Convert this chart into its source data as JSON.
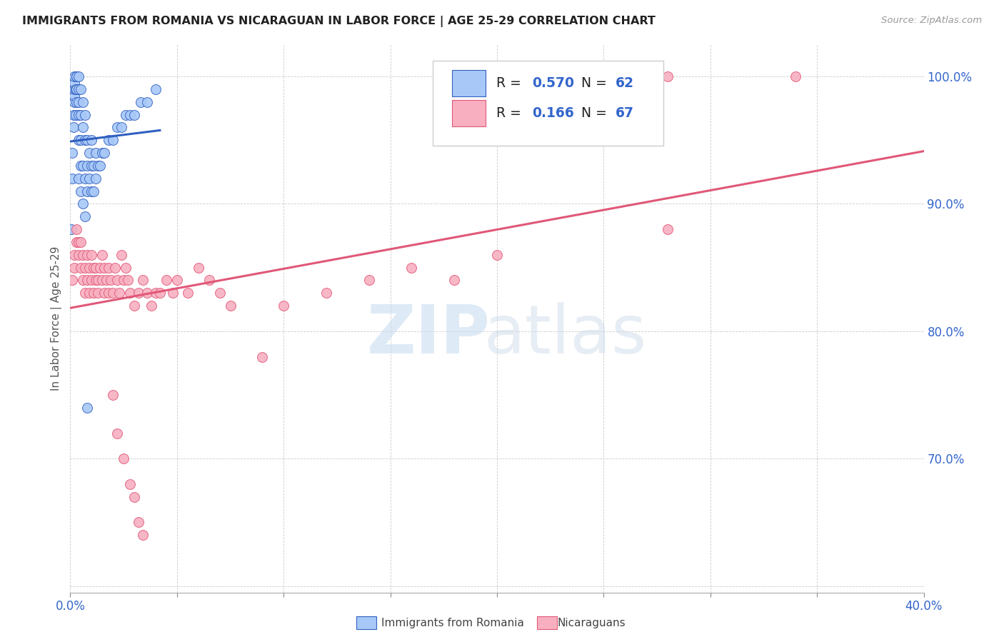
{
  "title": "IMMIGRANTS FROM ROMANIA VS NICARAGUAN IN LABOR FORCE | AGE 25-29 CORRELATION CHART",
  "source": "Source: ZipAtlas.com",
  "ylabel_label": "In Labor Force | Age 25-29",
  "legend_romania_r": "0.570",
  "legend_romania_n": "62",
  "legend_nicaraguan_r": "0.166",
  "legend_nicaraguan_n": "67",
  "legend_label1": "Immigrants from Romania",
  "legend_label2": "Nicaraguans",
  "romania_color": "#a8c8f8",
  "romania_edge_color": "#3060c0",
  "nicaraguan_color": "#f8b0c0",
  "nicaraguan_edge_color": "#e05878",
  "trendline_romania_color": "#3060c0",
  "trendline_nicaraguan_color": "#e05878",
  "xmin": 0.0,
  "xmax": 0.4,
  "ymin": 0.595,
  "ymax": 1.025,
  "ytick_positions": [
    0.6,
    0.7,
    0.8,
    0.9,
    1.0
  ],
  "ytick_labels": [
    "",
    "70.0%",
    "80.0%",
    "90.0%",
    "100.0%"
  ],
  "xtick_positions": [
    0.0,
    0.05,
    0.1,
    0.15,
    0.2,
    0.25,
    0.3,
    0.35,
    0.4
  ],
  "xtick_labels": [
    "0.0%",
    "",
    "",
    "",
    "",
    "",
    "",
    "",
    "40.0%"
  ],
  "romania_x": [
    0.0005,
    0.001,
    0.001,
    0.0015,
    0.0015,
    0.002,
    0.002,
    0.002,
    0.002,
    0.002,
    0.0025,
    0.0025,
    0.003,
    0.003,
    0.003,
    0.003,
    0.003,
    0.004,
    0.004,
    0.004,
    0.004,
    0.004,
    0.004,
    0.005,
    0.005,
    0.005,
    0.005,
    0.005,
    0.006,
    0.006,
    0.006,
    0.006,
    0.007,
    0.007,
    0.007,
    0.007,
    0.008,
    0.008,
    0.008,
    0.009,
    0.009,
    0.01,
    0.01,
    0.01,
    0.011,
    0.011,
    0.012,
    0.012,
    0.013,
    0.014,
    0.015,
    0.016,
    0.018,
    0.02,
    0.022,
    0.024,
    0.026,
    0.028,
    0.03,
    0.033,
    0.036,
    0.04
  ],
  "romania_y": [
    0.88,
    0.94,
    0.92,
    0.96,
    0.97,
    0.98,
    0.985,
    0.99,
    0.995,
    1.0,
    0.97,
    0.99,
    0.98,
    0.99,
    1.0,
    1.0,
    1.0,
    0.92,
    0.95,
    0.97,
    0.98,
    0.99,
    1.0,
    0.91,
    0.93,
    0.95,
    0.97,
    0.99,
    0.9,
    0.93,
    0.96,
    0.98,
    0.89,
    0.92,
    0.95,
    0.97,
    0.91,
    0.93,
    0.95,
    0.92,
    0.94,
    0.91,
    0.93,
    0.95,
    0.91,
    0.93,
    0.92,
    0.94,
    0.93,
    0.93,
    0.94,
    0.94,
    0.95,
    0.95,
    0.96,
    0.96,
    0.97,
    0.97,
    0.97,
    0.98,
    0.98,
    0.99
  ],
  "nicaraguan_x": [
    0.001,
    0.002,
    0.002,
    0.003,
    0.003,
    0.004,
    0.004,
    0.005,
    0.005,
    0.006,
    0.006,
    0.007,
    0.007,
    0.008,
    0.008,
    0.009,
    0.009,
    0.01,
    0.01,
    0.011,
    0.011,
    0.012,
    0.012,
    0.013,
    0.013,
    0.014,
    0.015,
    0.015,
    0.016,
    0.016,
    0.017,
    0.018,
    0.018,
    0.019,
    0.02,
    0.021,
    0.022,
    0.023,
    0.024,
    0.025,
    0.026,
    0.027,
    0.028,
    0.03,
    0.032,
    0.034,
    0.036,
    0.038,
    0.04,
    0.042,
    0.045,
    0.048,
    0.05,
    0.055,
    0.06,
    0.065,
    0.07,
    0.075,
    0.09,
    0.1,
    0.12,
    0.14,
    0.16,
    0.18,
    0.2,
    0.28,
    0.34
  ],
  "nicaraguan_y": [
    0.84,
    0.86,
    0.85,
    0.88,
    0.87,
    0.86,
    0.87,
    0.85,
    0.87,
    0.84,
    0.86,
    0.85,
    0.83,
    0.84,
    0.86,
    0.83,
    0.85,
    0.84,
    0.86,
    0.83,
    0.85,
    0.84,
    0.85,
    0.84,
    0.83,
    0.85,
    0.84,
    0.86,
    0.83,
    0.85,
    0.84,
    0.83,
    0.85,
    0.84,
    0.83,
    0.85,
    0.84,
    0.83,
    0.86,
    0.84,
    0.85,
    0.84,
    0.83,
    0.82,
    0.83,
    0.84,
    0.83,
    0.82,
    0.83,
    0.83,
    0.84,
    0.83,
    0.84,
    0.83,
    0.85,
    0.84,
    0.83,
    0.82,
    0.78,
    0.82,
    0.83,
    0.84,
    0.85,
    0.84,
    0.86,
    0.88,
    1.0
  ],
  "nicaraguan_low_x": [
    0.02,
    0.022,
    0.025,
    0.028,
    0.03,
    0.032,
    0.034
  ],
  "nicaraguan_low_y": [
    0.75,
    0.72,
    0.7,
    0.68,
    0.67,
    0.65,
    0.64
  ],
  "special_nicaragua_x": [
    0.28
  ],
  "special_nicaragua_y": [
    1.0
  ],
  "special_romania_low_x": [
    0.008
  ],
  "special_romania_low_y": [
    0.74
  ]
}
